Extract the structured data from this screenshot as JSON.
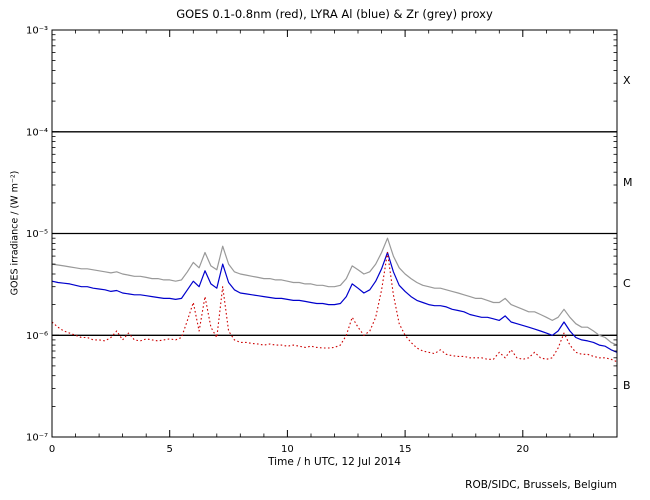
{
  "credit": "ROB/SIDC, Brussels, Belgium",
  "chart_data": {
    "type": "line",
    "title": "GOES 0.1-0.8nm (red), LYRA Al (blue) & Zr (grey) proxy",
    "xlabel": "Time / h UTC, 12 Jul 2014",
    "ylabel": "GOES irradiance / (W m⁻²)",
    "x_range": [
      0,
      24
    ],
    "y_log_range": [
      -7,
      -3
    ],
    "y_scale": "log",
    "grid": "off",
    "legend_position": "none (series colors named in title)",
    "x_major_ticks": [
      0,
      5,
      10,
      15,
      20
    ],
    "x_tick_labels": [
      "0",
      "5",
      "10",
      "15",
      "20"
    ],
    "y_ticks": [
      {
        "value": 0.001,
        "label": "10⁻³"
      },
      {
        "value": 0.0001,
        "label": "10⁻⁴"
      },
      {
        "value": 1e-05,
        "label": "10⁻⁵"
      },
      {
        "value": 1e-06,
        "label": "10⁻⁶"
      },
      {
        "value": 1e-07,
        "label": "10⁻⁷"
      }
    ],
    "hlines": [
      0.0001,
      1e-05,
      1e-06
    ],
    "flare_classes": [
      {
        "label": "X",
        "lower": 0.0001
      },
      {
        "label": "M",
        "lower": 1e-05
      },
      {
        "label": "C",
        "lower": 1e-06
      },
      {
        "label": "B",
        "lower": 1e-07
      }
    ],
    "x": [
      0,
      0.25,
      0.5,
      0.75,
      1,
      1.25,
      1.5,
      1.75,
      2,
      2.25,
      2.5,
      2.75,
      3,
      3.25,
      3.5,
      3.75,
      4,
      4.25,
      4.5,
      4.75,
      5,
      5.25,
      5.5,
      5.75,
      6,
      6.25,
      6.5,
      6.75,
      7,
      7.25,
      7.5,
      7.75,
      8,
      8.25,
      8.5,
      8.75,
      9,
      9.25,
      9.5,
      9.75,
      10,
      10.25,
      10.5,
      10.75,
      11,
      11.25,
      11.5,
      11.75,
      12,
      12.25,
      12.5,
      12.75,
      13,
      13.25,
      13.5,
      13.75,
      14,
      14.25,
      14.5,
      14.75,
      15,
      15.25,
      15.5,
      15.75,
      16,
      16.25,
      16.5,
      16.75,
      17,
      17.25,
      17.5,
      17.75,
      18,
      18.25,
      18.5,
      18.75,
      19,
      19.25,
      19.5,
      19.75,
      20,
      20.25,
      20.5,
      20.75,
      21,
      21.25,
      21.5,
      21.75,
      22,
      22.25,
      22.5,
      22.75,
      23,
      23.25,
      23.5,
      23.75,
      24
    ],
    "series": [
      {
        "id": "goes",
        "name": "GOES 0.1-0.8nm",
        "color": "#cc0000",
        "style": "dotted",
        "values": [
          1.35e-06,
          1.2e-06,
          1.1e-06,
          1.05e-06,
          1e-06,
          9.5e-07,
          9.5e-07,
          9e-07,
          9e-07,
          8.8e-07,
          9.5e-07,
          1.1e-06,
          9e-07,
          1.05e-06,
          9e-07,
          8.8e-07,
          9.2e-07,
          9e-07,
          8.8e-07,
          9e-07,
          9.2e-07,
          9e-07,
          9.5e-07,
          1.4e-06,
          2.1e-06,
          1.1e-06,
          2.4e-06,
          1.2e-06,
          9.5e-07,
          3e-06,
          1.1e-06,
          9e-07,
          8.5e-07,
          8.5e-07,
          8.3e-07,
          8.2e-07,
          8e-07,
          8.2e-07,
          8e-07,
          8e-07,
          7.8e-07,
          8e-07,
          7.8e-07,
          7.6e-07,
          7.8e-07,
          7.6e-07,
          7.5e-07,
          7.5e-07,
          7.6e-07,
          8e-07,
          1e-06,
          1.5e-06,
          1.2e-06,
          1e-06,
          1.1e-06,
          1.5e-06,
          2.8e-06,
          6.5e-06,
          2.5e-06,
          1.3e-06,
          1e-06,
          8.5e-07,
          7.5e-07,
          7e-07,
          6.8e-07,
          6.6e-07,
          7.2e-07,
          6.5e-07,
          6.3e-07,
          6.2e-07,
          6.2e-07,
          6e-07,
          6e-07,
          6e-07,
          5.8e-07,
          5.8e-07,
          6.8e-07,
          6e-07,
          7.2e-07,
          6e-07,
          5.8e-07,
          6e-07,
          6.8e-07,
          6e-07,
          5.8e-07,
          6e-07,
          7.5e-07,
          1.05e-06,
          8e-07,
          6.8e-07,
          6.5e-07,
          6.5e-07,
          6.2e-07,
          6e-07,
          6e-07,
          5.8e-07,
          5.5e-07
        ]
      },
      {
        "id": "lyra-al",
        "name": "LYRA Al proxy",
        "color": "#0000cc",
        "style": "solid",
        "values": [
          3.4e-06,
          3.3e-06,
          3.25e-06,
          3.2e-06,
          3.1e-06,
          3e-06,
          3e-06,
          2.9e-06,
          2.85e-06,
          2.8e-06,
          2.7e-06,
          2.75e-06,
          2.6e-06,
          2.55e-06,
          2.5e-06,
          2.5e-06,
          2.45e-06,
          2.4e-06,
          2.35e-06,
          2.3e-06,
          2.3e-06,
          2.25e-06,
          2.3e-06,
          2.8e-06,
          3.4e-06,
          3e-06,
          4.3e-06,
          3.2e-06,
          2.9e-06,
          5e-06,
          3.3e-06,
          2.8e-06,
          2.6e-06,
          2.55e-06,
          2.5e-06,
          2.45e-06,
          2.4e-06,
          2.35e-06,
          2.3e-06,
          2.3e-06,
          2.25e-06,
          2.2e-06,
          2.2e-06,
          2.15e-06,
          2.1e-06,
          2.05e-06,
          2.05e-06,
          2e-06,
          2e-06,
          2.05e-06,
          2.4e-06,
          3.2e-06,
          2.9e-06,
          2.6e-06,
          2.8e-06,
          3.4e-06,
          4.5e-06,
          6.5e-06,
          4.2e-06,
          3.1e-06,
          2.7e-06,
          2.4e-06,
          2.2e-06,
          2.1e-06,
          2e-06,
          1.95e-06,
          1.95e-06,
          1.9e-06,
          1.8e-06,
          1.75e-06,
          1.7e-06,
          1.6e-06,
          1.55e-06,
          1.5e-06,
          1.5e-06,
          1.45e-06,
          1.4e-06,
          1.55e-06,
          1.35e-06,
          1.3e-06,
          1.25e-06,
          1.2e-06,
          1.15e-06,
          1.1e-06,
          1.05e-06,
          1e-06,
          1.1e-06,
          1.35e-06,
          1.1e-06,
          9.5e-07,
          9e-07,
          8.8e-07,
          8.5e-07,
          8e-07,
          7.8e-07,
          7.2e-07,
          6.8e-07
        ]
      },
      {
        "id": "lyra-zr",
        "name": "LYRA Zr proxy",
        "color": "#999999",
        "style": "solid",
        "values": [
          5e-06,
          4.9e-06,
          4.8e-06,
          4.7e-06,
          4.6e-06,
          4.5e-06,
          4.5e-06,
          4.4e-06,
          4.3e-06,
          4.2e-06,
          4.1e-06,
          4.2e-06,
          4e-06,
          3.9e-06,
          3.8e-06,
          3.8e-06,
          3.7e-06,
          3.6e-06,
          3.6e-06,
          3.5e-06,
          3.5e-06,
          3.4e-06,
          3.5e-06,
          4.2e-06,
          5.2e-06,
          4.6e-06,
          6.5e-06,
          4.8e-06,
          4.4e-06,
          7.5e-06,
          5e-06,
          4.2e-06,
          4e-06,
          3.9e-06,
          3.8e-06,
          3.7e-06,
          3.6e-06,
          3.6e-06,
          3.5e-06,
          3.5e-06,
          3.4e-06,
          3.3e-06,
          3.3e-06,
          3.2e-06,
          3.2e-06,
          3.1e-06,
          3.1e-06,
          3e-06,
          3e-06,
          3.1e-06,
          3.6e-06,
          4.8e-06,
          4.4e-06,
          4e-06,
          4.2e-06,
          5e-06,
          6.5e-06,
          9e-06,
          6e-06,
          4.6e-06,
          4e-06,
          3.6e-06,
          3.3e-06,
          3.1e-06,
          3e-06,
          2.9e-06,
          2.9e-06,
          2.8e-06,
          2.7e-06,
          2.6e-06,
          2.5e-06,
          2.4e-06,
          2.3e-06,
          2.3e-06,
          2.2e-06,
          2.1e-06,
          2.1e-06,
          2.3e-06,
          2e-06,
          1.9e-06,
          1.8e-06,
          1.7e-06,
          1.7e-06,
          1.6e-06,
          1.5e-06,
          1.4e-06,
          1.5e-06,
          1.8e-06,
          1.5e-06,
          1.3e-06,
          1.2e-06,
          1.2e-06,
          1.1e-06,
          1e-06,
          9.5e-07,
          8.5e-07,
          8e-07
        ]
      }
    ]
  }
}
